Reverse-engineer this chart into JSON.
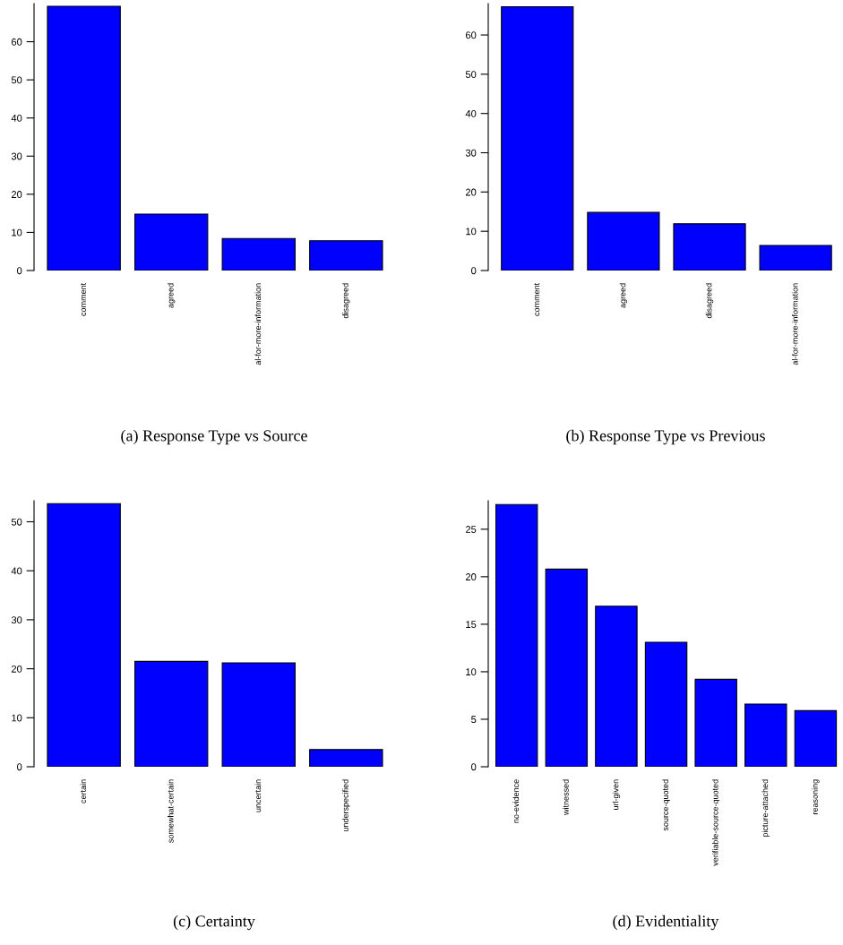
{
  "chart_data": [
    {
      "type": "bar",
      "title": "(a) Response Type vs Source",
      "categories": [
        "comment",
        "agreed",
        "al-for-more-information",
        "disagreed"
      ],
      "values": [
        69.3,
        14.8,
        8.4,
        7.8
      ],
      "color": "#0000ff",
      "ylim": [
        0,
        70
      ],
      "yticks": [
        0,
        10,
        20,
        30,
        40,
        50,
        60
      ]
    },
    {
      "type": "bar",
      "title": "(b) Response Type vs Previous",
      "categories": [
        "comment",
        "agreed",
        "disagreed",
        "al-for-more-information"
      ],
      "values": [
        67.2,
        14.8,
        11.9,
        6.4
      ],
      "color": "#0000ff",
      "ylim": [
        0,
        68
      ],
      "yticks": [
        0,
        10,
        20,
        30,
        40,
        50,
        60
      ]
    },
    {
      "type": "bar",
      "title": "(c) Certainty",
      "categories": [
        "certain",
        "somewhat-certain",
        "uncertain",
        "underspecified"
      ],
      "values": [
        53.7,
        21.5,
        21.2,
        3.5
      ],
      "color": "#0000ff",
      "ylim": [
        0,
        54.3
      ],
      "yticks": [
        0,
        10,
        20,
        30,
        40,
        50
      ]
    },
    {
      "type": "bar",
      "title": "(d) Evidentiality",
      "categories": [
        "no-evidence",
        "witnessed",
        "url-given",
        "source-quoted",
        "verifiable-source-quoted",
        "picture-attached",
        "reasoning"
      ],
      "values": [
        27.6,
        20.8,
        16.9,
        13.1,
        9.2,
        6.6,
        5.9
      ],
      "color": "#0000ff",
      "ylim": [
        0,
        28
      ],
      "yticks": [
        0,
        5,
        10,
        15,
        20,
        25
      ]
    }
  ]
}
